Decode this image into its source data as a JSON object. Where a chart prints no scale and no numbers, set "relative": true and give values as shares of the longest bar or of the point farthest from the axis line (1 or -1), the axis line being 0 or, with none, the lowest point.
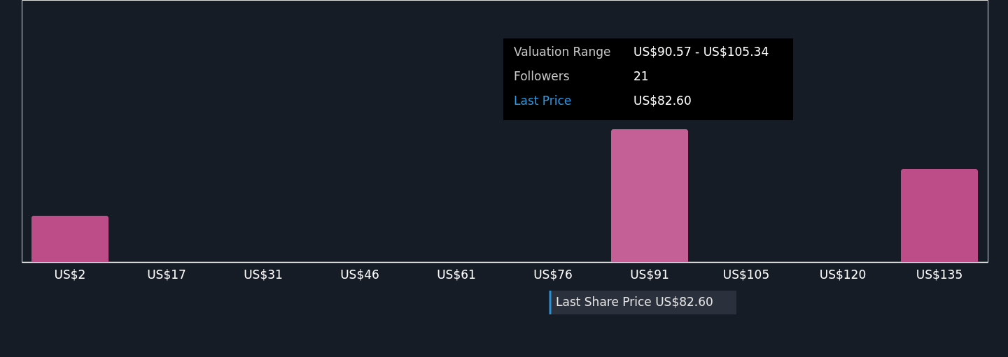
{
  "chart_data": {
    "type": "bar",
    "relative": true,
    "categories": [
      "US$2",
      "US$17",
      "US$31",
      "US$46",
      "US$61",
      "US$76",
      "US$91",
      "US$105",
      "US$120",
      "US$135"
    ],
    "values": [
      0.35,
      0,
      0,
      0,
      0,
      0,
      1,
      0,
      0,
      0.7
    ],
    "colors": [
      "#bd4d88",
      "#bd4d88",
      "#bd4d88",
      "#bd4d88",
      "#bd4d88",
      "#bd4d88",
      "#c46096",
      "#bd4d88",
      "#bd4d88",
      "#bd4d88"
    ],
    "annotations": [
      "Valuation Range",
      "US$90.57 - US$105.34",
      "Followers",
      "21",
      "Last Price",
      "US$82.60",
      "Last Share Price US$82.60"
    ],
    "grid": false
  }
}
